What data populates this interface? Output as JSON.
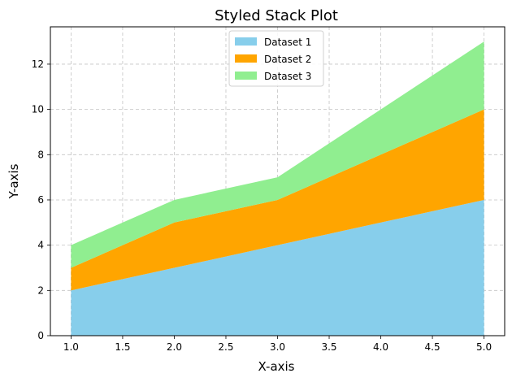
{
  "chart_data": {
    "type": "area",
    "stacked": true,
    "title": "Styled Stack Plot",
    "xlabel": "X-axis",
    "ylabel": "Y-axis",
    "x": [
      1,
      2,
      3,
      4,
      5
    ],
    "series": [
      {
        "name": "Dataset 1",
        "values": [
          2,
          3,
          4,
          5,
          6
        ],
        "color": "#87CEEB"
      },
      {
        "name": "Dataset 2",
        "values": [
          1,
          2,
          2,
          3,
          4
        ],
        "color": "#FFA500"
      },
      {
        "name": "Dataset 3",
        "values": [
          1,
          1,
          1,
          2,
          3
        ],
        "color": "#90EE90"
      }
    ],
    "xlim": [
      0.8,
      5.2
    ],
    "ylim": [
      0,
      13.65
    ],
    "xticks": [
      1.0,
      1.5,
      2.0,
      2.5,
      3.0,
      3.5,
      4.0,
      4.5,
      5.0
    ],
    "xtick_labels": [
      "1.0",
      "1.5",
      "2.0",
      "2.5",
      "3.0",
      "3.5",
      "4.0",
      "4.5",
      "5.0"
    ],
    "yticks": [
      0,
      2,
      4,
      6,
      8,
      10,
      12
    ],
    "ytick_labels": [
      "0",
      "2",
      "4",
      "6",
      "8",
      "10",
      "12"
    ],
    "grid": true,
    "grid_style": "dashed",
    "legend_position": "top-center"
  }
}
